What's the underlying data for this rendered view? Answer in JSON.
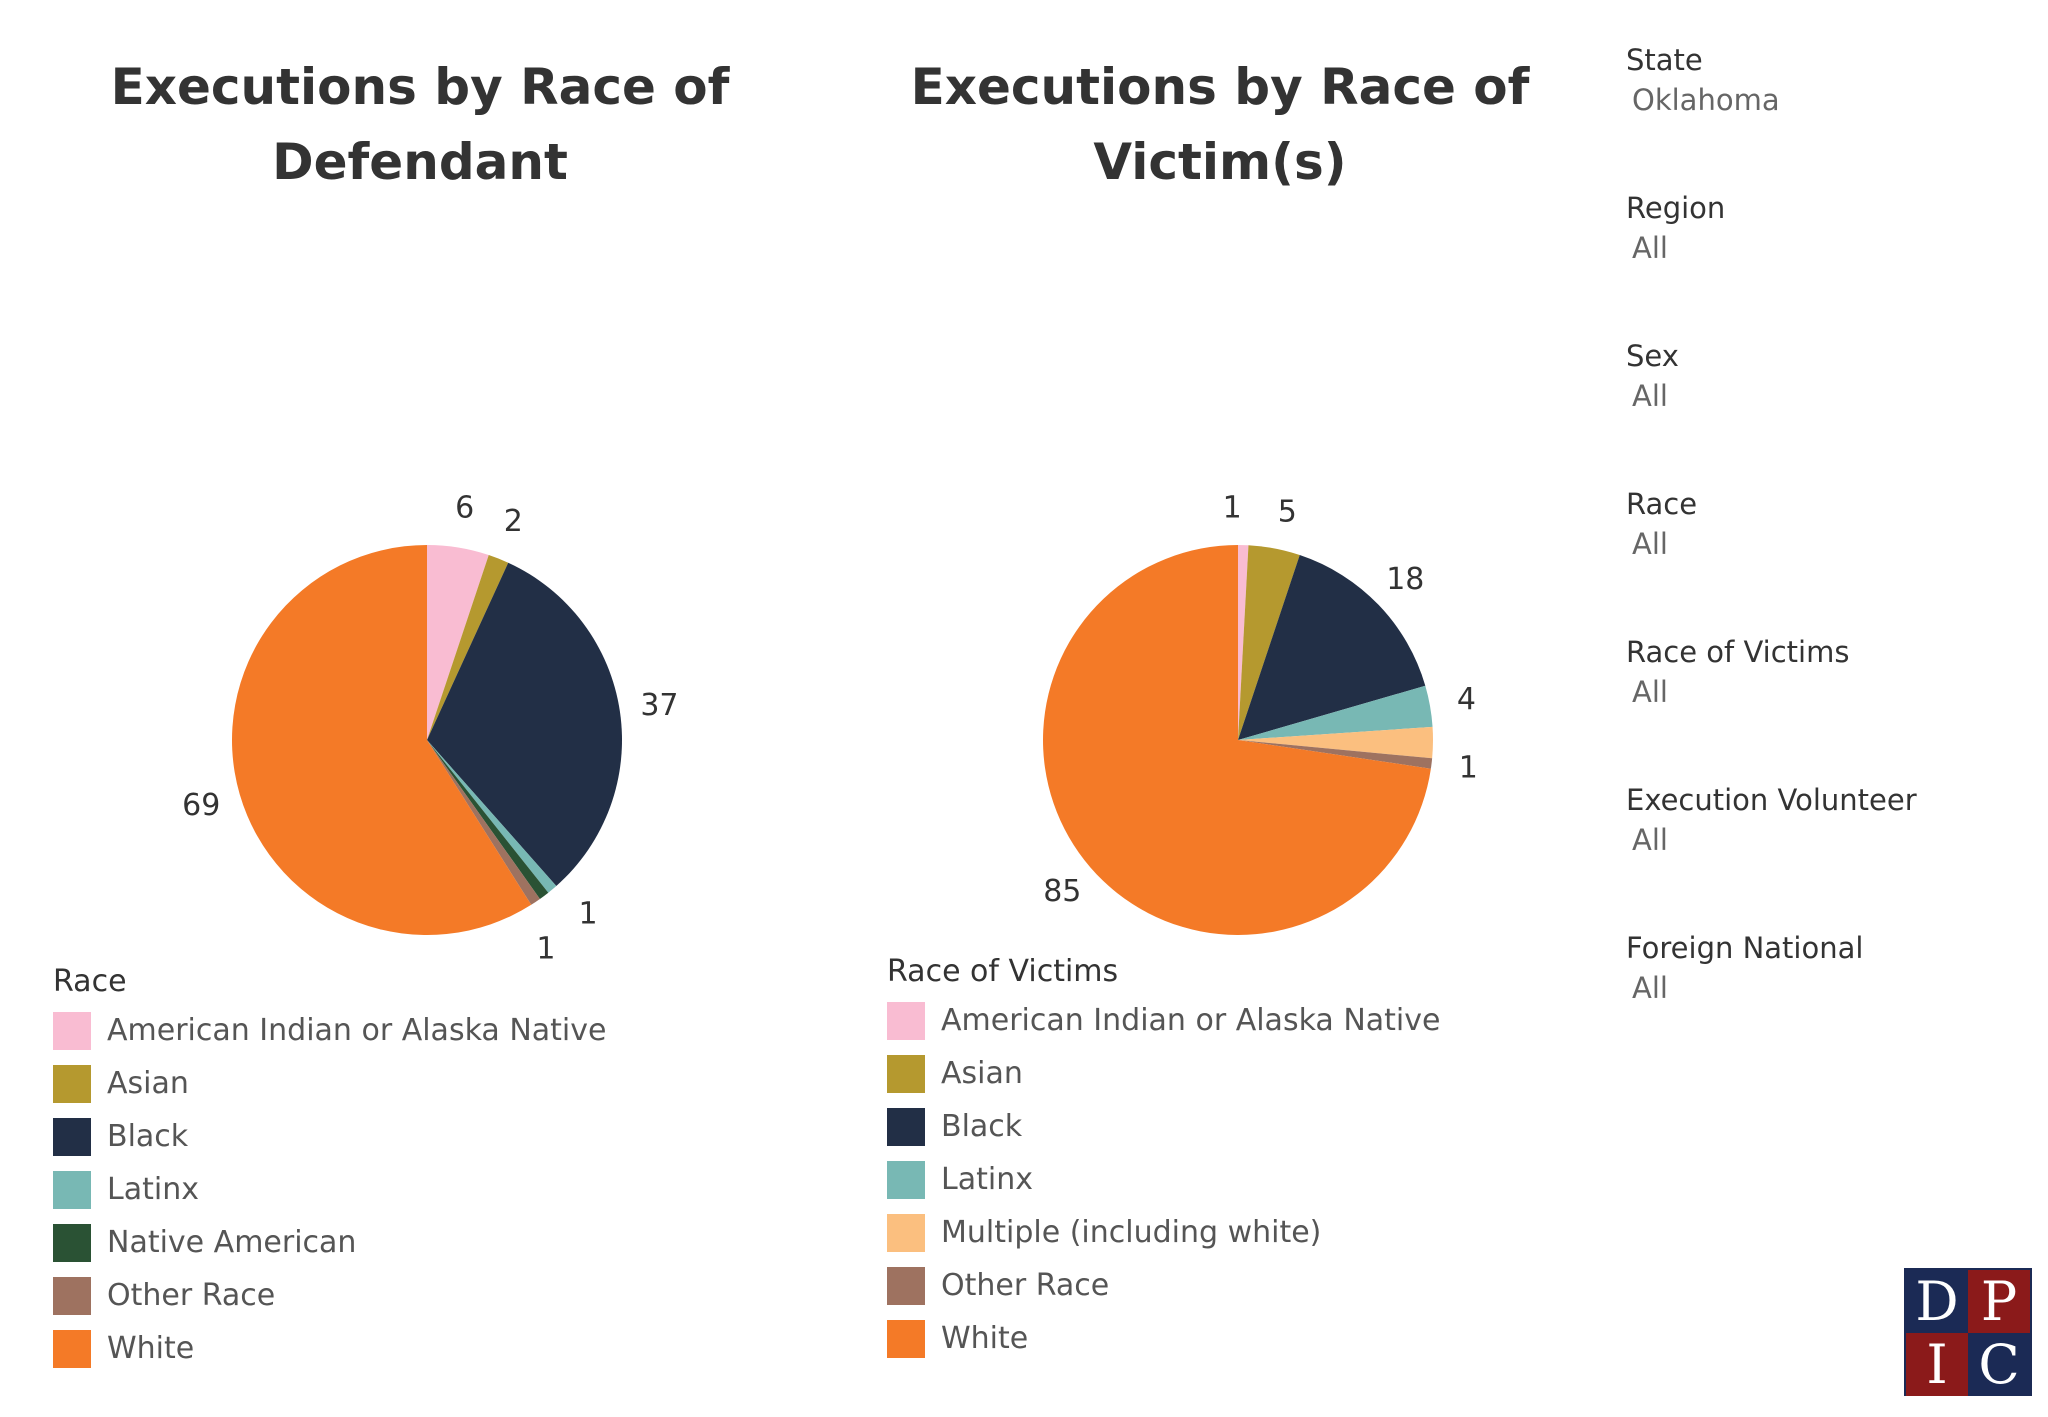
{
  "chart_data": [
    {
      "type": "pie",
      "title": "Executions by Race of\nDefendant",
      "legend_title": "Race",
      "legend_placement": "bottom-left",
      "slices": [
        {
          "label": "American Indian or Alaska Native",
          "value": 6,
          "color": "#f9bcd2"
        },
        {
          "label": "Asian",
          "value": 2,
          "color": "#b5992f"
        },
        {
          "label": "Black",
          "value": 37,
          "color": "#222f46"
        },
        {
          "label": "Latinx",
          "value": 1,
          "color": "#78b8b4"
        },
        {
          "label": "Native American",
          "value": 1,
          "color": "#2a5234"
        },
        {
          "label": "Other Race",
          "value": 1,
          "color": "#9e7260"
        },
        {
          "label": "White",
          "value": 69,
          "color": "#f47a27"
        }
      ],
      "slice_labels": [
        {
          "text": "6",
          "slice": 0
        },
        {
          "text": "2",
          "slice": 1
        },
        {
          "text": "37",
          "slice": 2
        },
        {
          "text": "1",
          "slice": 3
        },
        {
          "text": "1",
          "slice": 5
        },
        {
          "text": "69",
          "slice": 6
        }
      ],
      "legend": [
        "American Indian or Alaska Native",
        "Asian",
        "Black",
        "Latinx",
        "Native American",
        "Other Race",
        "White"
      ]
    },
    {
      "type": "pie",
      "title": "Executions by Race of\nVictim(s)",
      "legend_title": "Race of Victims",
      "legend_placement": "bottom-left",
      "slices": [
        {
          "label": "American Indian or Alaska Native",
          "value": 1,
          "color": "#f9bcd2"
        },
        {
          "label": "Asian",
          "value": 5,
          "color": "#b5992f"
        },
        {
          "label": "Black",
          "value": 18,
          "color": "#222f46"
        },
        {
          "label": "Latinx",
          "value": 4,
          "color": "#78b8b4"
        },
        {
          "label": "Multiple (including white)",
          "value": 3,
          "color": "#fbbf7f"
        },
        {
          "label": "Other Race",
          "value": 1,
          "color": "#9e7260"
        },
        {
          "label": "White",
          "value": 85,
          "color": "#f47a27"
        }
      ],
      "slice_labels": [
        {
          "text": "1",
          "slice": 0
        },
        {
          "text": "5",
          "slice": 1
        },
        {
          "text": "18",
          "slice": 2
        },
        {
          "text": "4",
          "slice": 3
        },
        {
          "text": "1",
          "slice": 5
        },
        {
          "text": "85",
          "slice": 6
        }
      ],
      "legend": [
        "American Indian or Alaska Native",
        "Asian",
        "Black",
        "Latinx",
        "Multiple (including white)",
        "Other Race",
        "White"
      ]
    }
  ],
  "filters": [
    {
      "label": "State",
      "value": "Oklahoma"
    },
    {
      "label": "Region",
      "value": "All"
    },
    {
      "label": "Sex",
      "value": "All"
    },
    {
      "label": "Race",
      "value": "All"
    },
    {
      "label": "Race of Victims",
      "value": "All"
    },
    {
      "label": "Execution Volunteer",
      "value": "All"
    },
    {
      "label": "Foreign National",
      "value": "All"
    }
  ],
  "logo": {
    "letters": [
      "D",
      "P",
      "I",
      "C"
    ]
  }
}
